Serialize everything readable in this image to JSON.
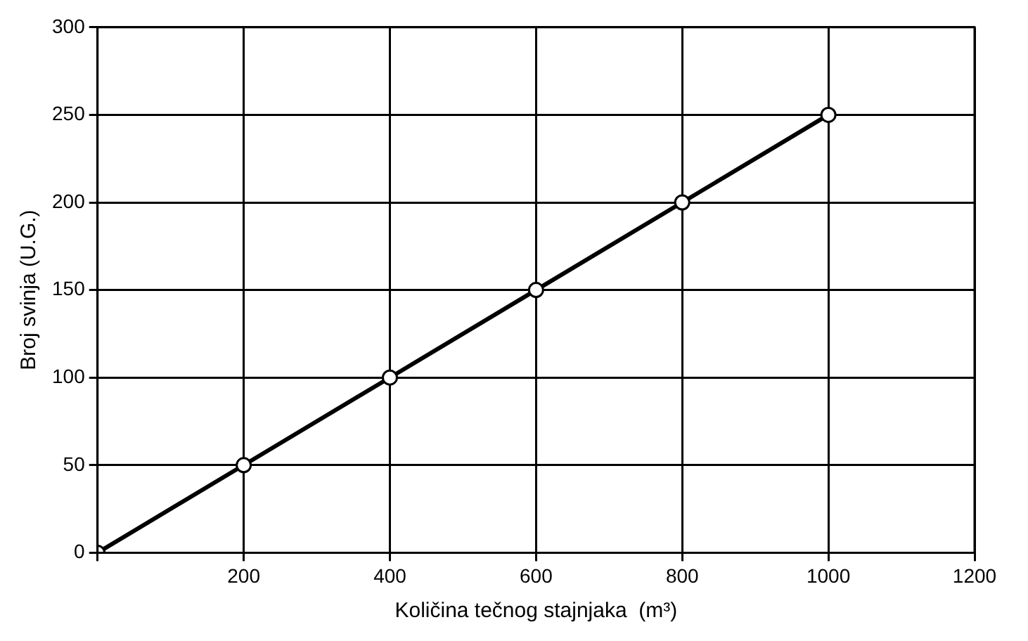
{
  "chart_data": {
    "type": "line",
    "xlabel": "Količina tečnog stajnjaka  (m³)",
    "ylabel": "Broj svinja (U.G.)",
    "x": [
      0,
      200,
      400,
      600,
      800,
      1000
    ],
    "series": [
      {
        "color": "#000000",
        "values": [
          0,
          50,
          100,
          150,
          200,
          250
        ]
      }
    ],
    "xlim": [
      0,
      1200
    ],
    "xticks": [
      {
        "value": 0,
        "label": null
      },
      200,
      400,
      600,
      800,
      1000,
      1200
    ],
    "ylim": [
      0,
      300
    ],
    "yticks": [
      0,
      50,
      100,
      150,
      200,
      250,
      300
    ],
    "grid": true,
    "marker": "circle",
    "line_style": "solid",
    "legend": false
  }
}
